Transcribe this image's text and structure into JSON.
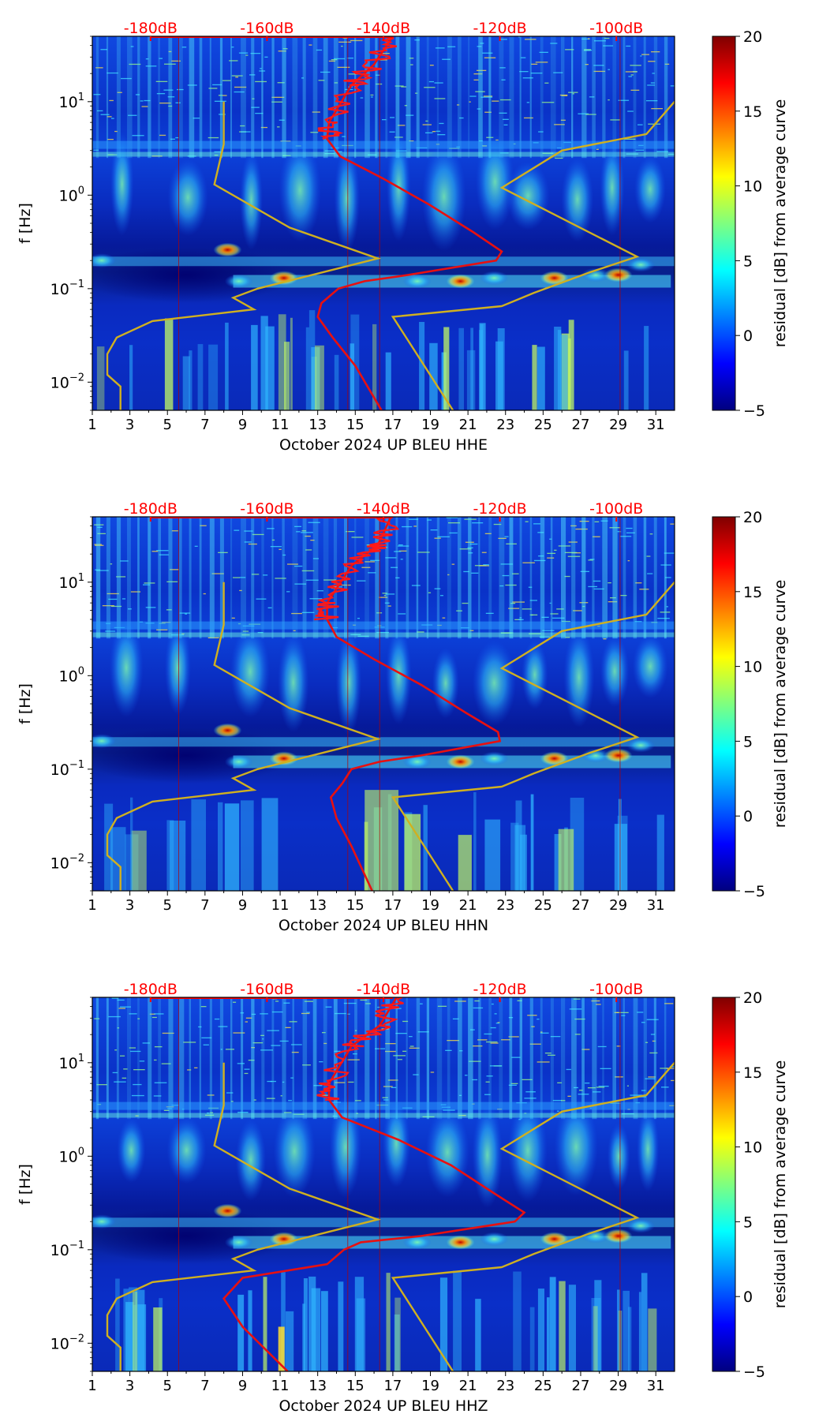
{
  "chart_data": {
    "type": "heatmap",
    "description_units": "spectrogram residual (dB) vs day and frequency",
    "colorbar": {
      "label": "residual [dB] from average curve",
      "range": [
        -5,
        20
      ],
      "ticks": [
        "20",
        "15",
        "10",
        "5",
        "0",
        "−5"
      ],
      "tick_values": [
        20,
        15,
        10,
        5,
        0,
        -5
      ],
      "colormap": [
        "#00007f",
        "#0000ff",
        "#007fff",
        "#00ffff",
        "#7fff7f",
        "#ffff00",
        "#ff7f00",
        "#ff0000",
        "#7f0000"
      ]
    },
    "x_axis": {
      "range": [
        1,
        32
      ],
      "ticks": [
        "1",
        "3",
        "5",
        "7",
        "9",
        "11",
        "13",
        "15",
        "17",
        "19",
        "21",
        "23",
        "25",
        "27",
        "29",
        "31"
      ],
      "tick_values": [
        1,
        3,
        5,
        7,
        9,
        11,
        13,
        15,
        17,
        19,
        21,
        23,
        25,
        27,
        29,
        31
      ]
    },
    "y_axis": {
      "label": "f [Hz]",
      "scale": "log",
      "range_hz": [
        0.005,
        50
      ],
      "ticks": [
        {
          "base": "10",
          "exp": "1",
          "value": 10
        },
        {
          "base": "10",
          "exp": "0",
          "value": 1
        },
        {
          "base": "10",
          "exp": "−1",
          "value": 0.1
        },
        {
          "base": "10",
          "exp": "−2",
          "value": 0.01
        }
      ]
    },
    "db_axis": {
      "color": "#ff0000",
      "ticks": [
        "-180dB",
        "-160dB",
        "-140dB",
        "-120dB",
        "-100dB"
      ],
      "tick_days": [
        4.1,
        10.3,
        16.5,
        22.7,
        28.9
      ]
    },
    "noise_model_curves": {
      "color": "#d0b020",
      "low_model": [
        [
          10,
          8
        ],
        [
          3.5,
          8.0
        ],
        [
          1.3,
          7.5
        ],
        [
          0.45,
          11.5
        ],
        [
          0.21,
          16.2
        ],
        [
          0.1,
          9.8
        ],
        [
          0.08,
          8.5
        ],
        [
          0.06,
          9.6
        ],
        [
          0.045,
          4.2
        ],
        [
          0.03,
          2.3
        ],
        [
          0.02,
          1.8
        ],
        [
          0.012,
          1.8
        ],
        [
          0.009,
          2.5
        ],
        [
          0.005,
          2.5
        ]
      ],
      "high_model": [
        [
          10,
          32
        ],
        [
          4.5,
          30.5
        ],
        [
          3.0,
          26.0
        ],
        [
          1.2,
          22.8
        ],
        [
          0.22,
          30.0
        ],
        [
          0.15,
          27.5
        ],
        [
          0.09,
          24.5
        ],
        [
          0.065,
          22.8
        ],
        [
          0.05,
          17.0
        ],
        [
          0.005,
          20.2
        ]
      ]
    },
    "panels": [
      {
        "xlabel": "October 2024 UP BLEU  HHE",
        "median_curve": [
          [
            50,
            17.0
          ],
          [
            25,
            16.0
          ],
          [
            15,
            14.8
          ],
          [
            6,
            13.6
          ],
          [
            4,
            13.5
          ],
          [
            2.6,
            14.2
          ],
          [
            1.5,
            16.5
          ],
          [
            0.8,
            18.9
          ],
          [
            0.4,
            21.3
          ],
          [
            0.25,
            22.8
          ],
          [
            0.2,
            22.5
          ],
          [
            0.14,
            17.8
          ],
          [
            0.12,
            15.5
          ],
          [
            0.1,
            14.1
          ],
          [
            0.07,
            13.2
          ],
          [
            0.05,
            13.0
          ],
          [
            0.03,
            13.8
          ],
          [
            0.015,
            15.0
          ],
          [
            0.005,
            16.4
          ]
        ]
      },
      {
        "xlabel": "October 2024 UP BLEU  HHN",
        "median_curve": [
          [
            50,
            16.9
          ],
          [
            25,
            16.2
          ],
          [
            15,
            14.8
          ],
          [
            6,
            13.5
          ],
          [
            4,
            13.5
          ],
          [
            2.6,
            14.0
          ],
          [
            1.5,
            16.0
          ],
          [
            0.8,
            18.5
          ],
          [
            0.4,
            20.9
          ],
          [
            0.25,
            22.6
          ],
          [
            0.2,
            22.7
          ],
          [
            0.14,
            18.5
          ],
          [
            0.12,
            16.3
          ],
          [
            0.1,
            14.8
          ],
          [
            0.07,
            14.3
          ],
          [
            0.05,
            13.7
          ],
          [
            0.03,
            14.0
          ],
          [
            0.015,
            14.8
          ],
          [
            0.005,
            15.9
          ]
        ]
      },
      {
        "xlabel": "October 2024 UP BLEU  HHZ",
        "median_curve": [
          [
            50,
            17.2
          ],
          [
            25,
            16.3
          ],
          [
            15,
            14.8
          ],
          [
            6,
            13.6
          ],
          [
            4,
            13.6
          ],
          [
            2.6,
            14.3
          ],
          [
            1.5,
            17.3
          ],
          [
            0.8,
            20.1
          ],
          [
            0.4,
            22.4
          ],
          [
            0.25,
            24.0
          ],
          [
            0.2,
            23.5
          ],
          [
            0.14,
            18.5
          ],
          [
            0.12,
            15.3
          ],
          [
            0.1,
            14.4
          ],
          [
            0.07,
            13.5
          ],
          [
            0.05,
            9.0
          ],
          [
            0.03,
            8.0
          ],
          [
            0.015,
            9.0
          ],
          [
            0.005,
            11.4
          ]
        ]
      }
    ]
  }
}
